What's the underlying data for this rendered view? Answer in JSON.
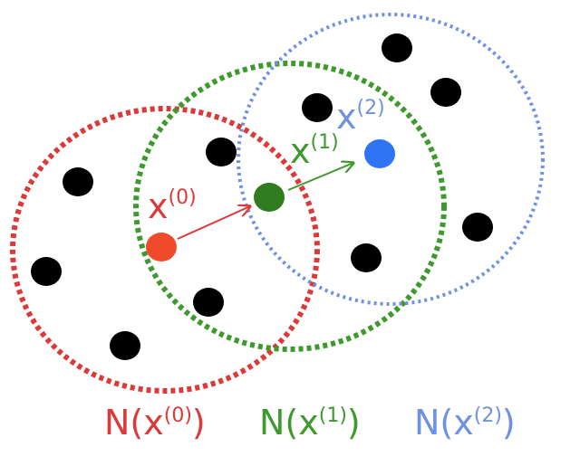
{
  "colors": {
    "red": "#dc3a3a",
    "green": "#3f9a2e",
    "blue": "#6f91e2",
    "point_red": "#ef4b2a",
    "point_green": "#2f7d1e",
    "point_blue": "#2f74f5",
    "dots": "#000000"
  },
  "iterates": [
    {
      "label": "x",
      "index": "(0)",
      "color": "red"
    },
    {
      "label": "x",
      "index": "(1)",
      "color": "green"
    },
    {
      "label": "x",
      "index": "(2)",
      "color": "blue"
    }
  ],
  "neighborhoods": [
    {
      "prefix": "N(x",
      "index": "(0)",
      "suffix": ")",
      "color": "red"
    },
    {
      "prefix": "N(x",
      "index": "(1)",
      "suffix": ")",
      "color": "green"
    },
    {
      "prefix": "N(x",
      "index": "(2)",
      "suffix": ")",
      "color": "blue"
    }
  ]
}
